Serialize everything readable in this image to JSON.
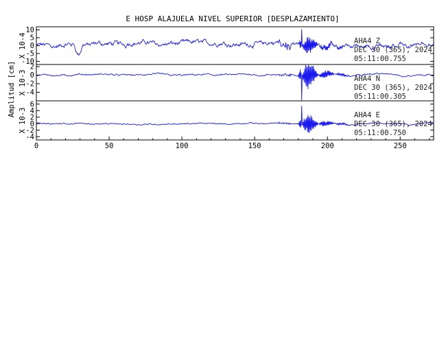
{
  "chart_data": {
    "type": "line",
    "title": "E HOSP ALAJUELA NIVEL SUPERIOR [DESPLAZAMIENTO]",
    "ylabel": "Amplitud [cm]",
    "xlabel": "",
    "xlim": [
      0,
      273
    ],
    "x_ticks": [
      0,
      50,
      100,
      150,
      200,
      250
    ],
    "line_color": "#1a1aee",
    "grid": false,
    "panels": [
      {
        "component": "Z",
        "scale_label": "X 10-4",
        "ylim": [
          -12,
          12
        ],
        "y_ticks": [
          -10,
          -5,
          0,
          5,
          10
        ],
        "station": "AHA4   Z",
        "date": "DEC 30 (365), 2024",
        "time": "05:11:00.755",
        "background_amplitude": 3.5,
        "event_peak": 10.5
      },
      {
        "component": "N",
        "scale_label": "X 10-3",
        "ylim": [
          -6,
          2.5
        ],
        "y_ticks": [
          -4,
          -2,
          0,
          2
        ],
        "station": "AHA4   N",
        "date": "DEC 30 (365), 2024",
        "time": "05:11:00.305",
        "background_amplitude": 0.45,
        "event_peak": -6.0
      },
      {
        "component": "E",
        "scale_label": "X 10-3",
        "ylim": [
          -5,
          7
        ],
        "y_ticks": [
          -4,
          -2,
          0,
          2,
          4,
          6
        ],
        "station": "AHA4   E",
        "date": "DEC 30 (365), 2024",
        "time": "05:11:00.750",
        "background_amplitude": 0.45,
        "event_peak": 5.5
      }
    ]
  }
}
